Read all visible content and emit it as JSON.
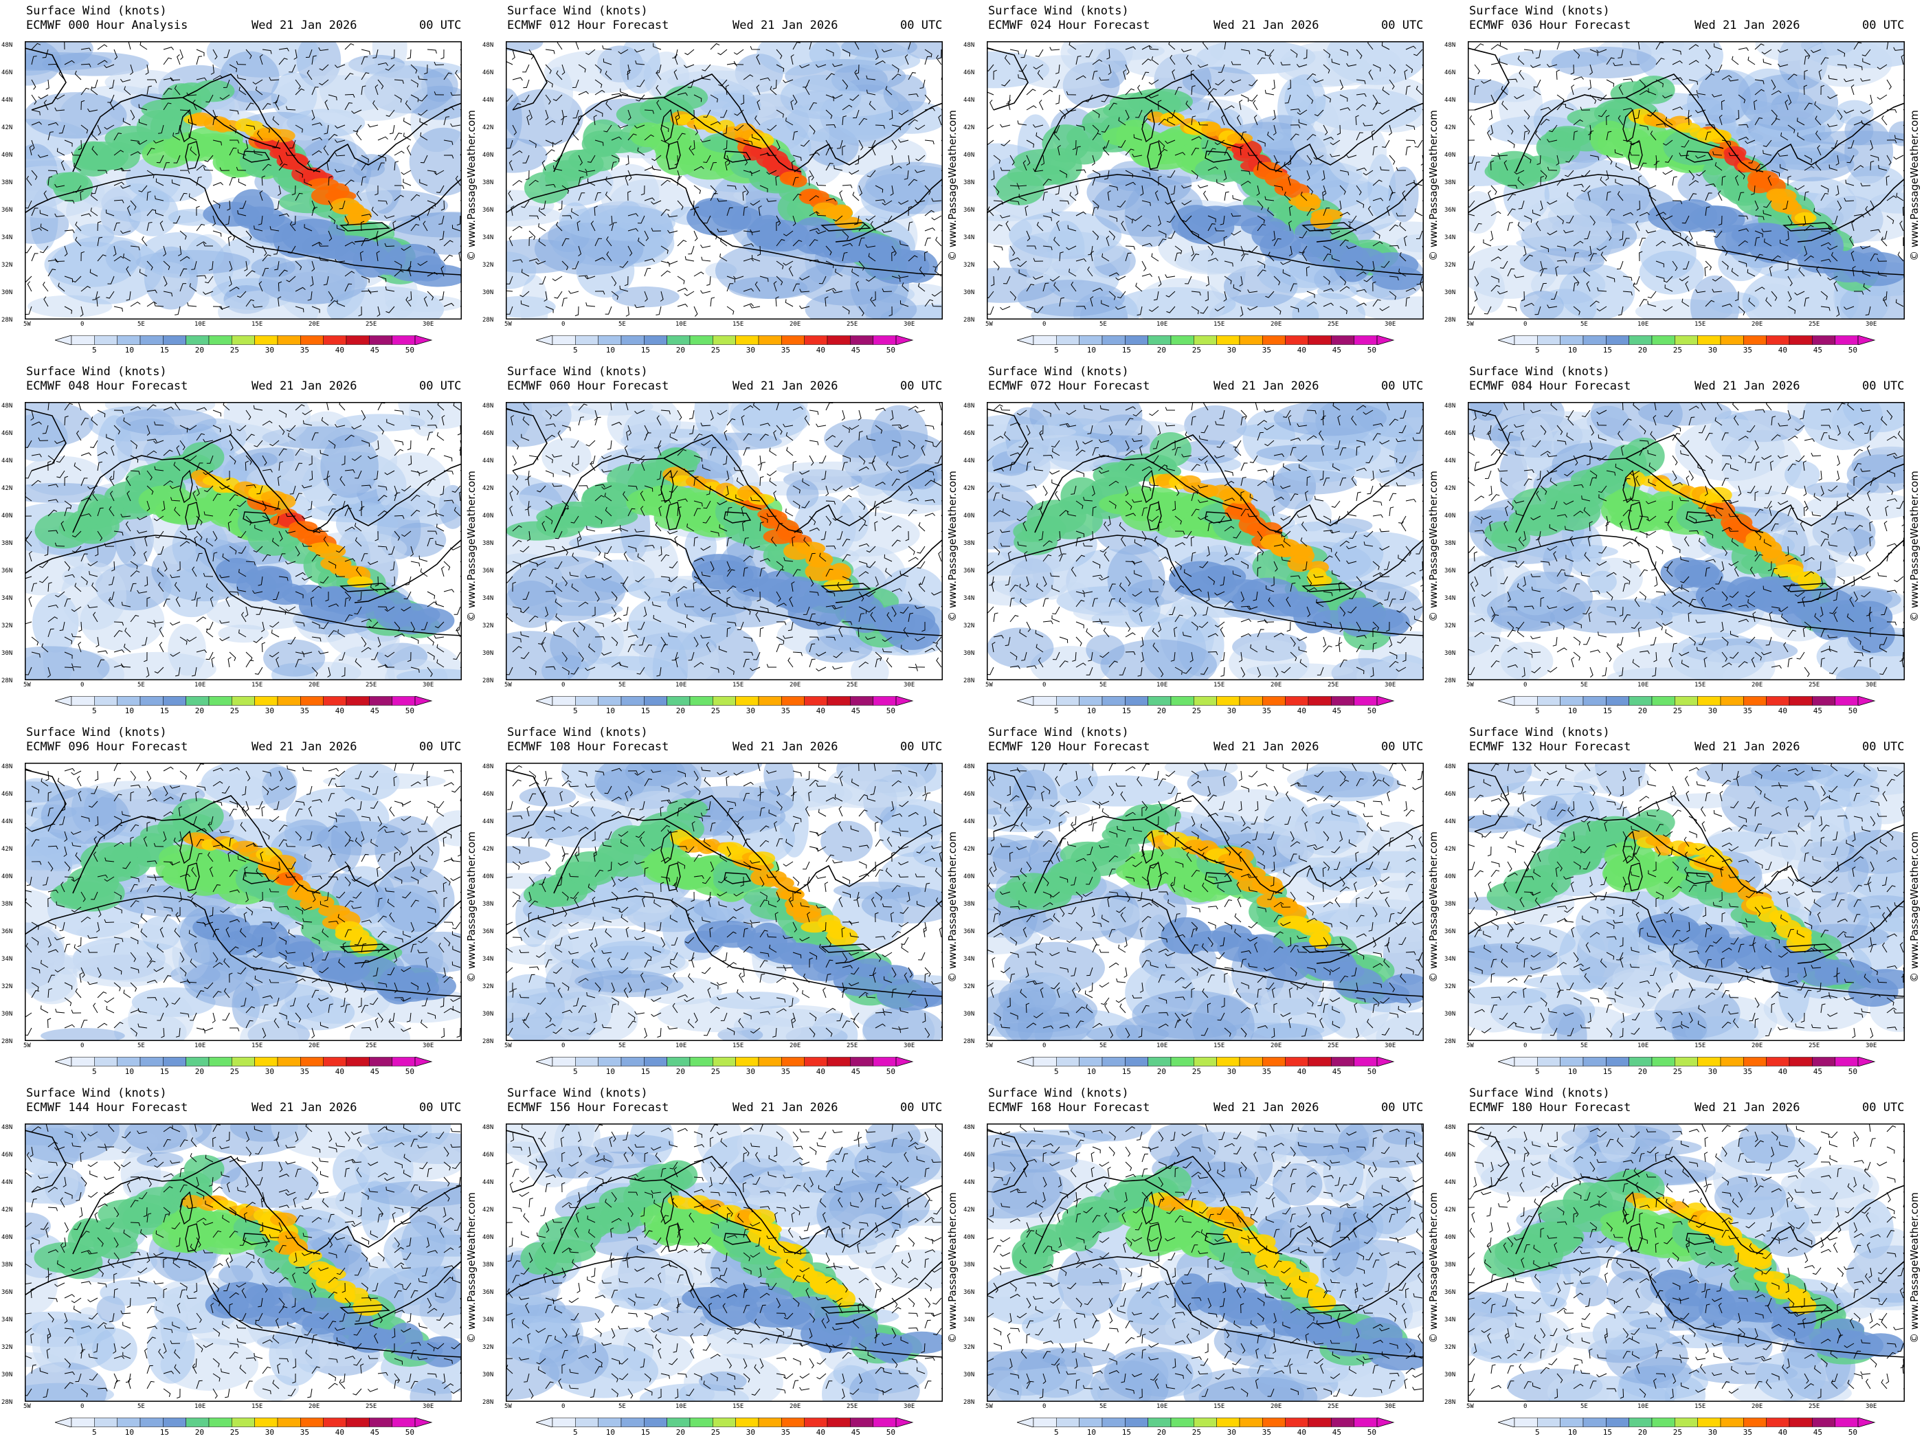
{
  "title": "Surface Wind (knots)",
  "model": "ECMWF",
  "date": "Wed 21 Jan 2026",
  "utc": "00 UTC",
  "copyright": "© www.PassageWeather.com",
  "lat_labels": [
    "48N",
    "46N",
    "44N",
    "42N",
    "40N",
    "38N",
    "36N",
    "34N",
    "32N",
    "30N",
    "28N"
  ],
  "lon_labels": [
    "5W",
    "0",
    "5E",
    "10E",
    "15E",
    "20E",
    "25E",
    "30E"
  ],
  "colorbar": {
    "ticks": [
      "5",
      "10",
      "15",
      "20",
      "25",
      "30",
      "35",
      "40",
      "45",
      "50"
    ],
    "colors": [
      "#e6eefb",
      "#c9dbf3",
      "#a6c4ec",
      "#86abe0",
      "#6f98d6",
      "#5fcf8a",
      "#6ce36a",
      "#b8e84e",
      "#ffd400",
      "#ffaa00",
      "#ff6a00",
      "#f03020",
      "#cc1020",
      "#a01070",
      "#e010c0"
    ]
  },
  "panels": [
    {
      "forecast": "ECMWF 000 Hour Analysis"
    },
    {
      "forecast": "ECMWF 012 Hour Forecast"
    },
    {
      "forecast": "ECMWF 024 Hour Forecast"
    },
    {
      "forecast": "ECMWF 036 Hour Forecast"
    },
    {
      "forecast": "ECMWF 048 Hour Forecast"
    },
    {
      "forecast": "ECMWF 060 Hour Forecast"
    },
    {
      "forecast": "ECMWF 072 Hour Forecast"
    },
    {
      "forecast": "ECMWF 084 Hour Forecast"
    },
    {
      "forecast": "ECMWF 096 Hour Forecast"
    },
    {
      "forecast": "ECMWF 108 Hour Forecast"
    },
    {
      "forecast": "ECMWF 120 Hour Forecast"
    },
    {
      "forecast": "ECMWF 132 Hour Forecast"
    },
    {
      "forecast": "ECMWF 144 Hour Forecast"
    },
    {
      "forecast": "ECMWF 156 Hour Forecast"
    },
    {
      "forecast": "ECMWF 168 Hour Forecast"
    },
    {
      "forecast": "ECMWF 180 Hour Forecast"
    }
  ]
}
